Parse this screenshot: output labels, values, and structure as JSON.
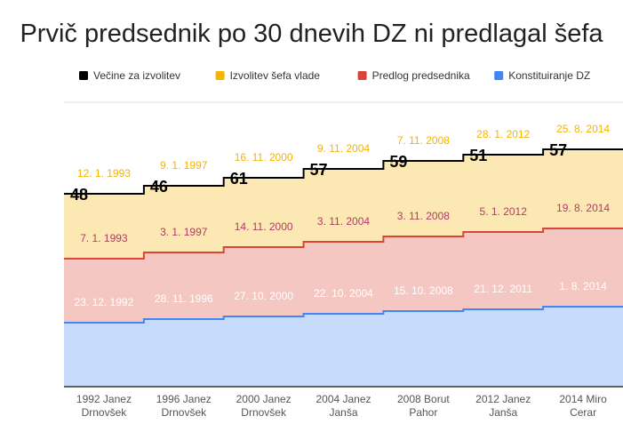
{
  "title": "Prvič predsednik po 30 dnevih DZ ni predlagal šefa",
  "colors": {
    "votes": "#000000",
    "izvolitev": "#f4b400",
    "predlog": "#db4437",
    "konstituiranje": "#4285f4",
    "fill_izvolitev": "#fce8b2",
    "fill_predlog": "#f4c7c3",
    "fill_konstituiranje": "#c6dafc",
    "predlog_date": "#b5396a",
    "axis": "#333333"
  },
  "chart_data": {
    "type": "area",
    "title": "Prvič predsednik po 30 dnevih DZ ni predlagal šefa",
    "categories": [
      [
        "1992 Janez",
        "Drnovšek"
      ],
      [
        "1996 Janez",
        "Drnovšek"
      ],
      [
        "2000 Janez",
        "Drnovšek"
      ],
      [
        "2004 Janez",
        "Janša"
      ],
      [
        "2008 Borut",
        "Pahor"
      ],
      [
        "2012 Janez",
        "Janša"
      ],
      [
        "2014 Miro",
        "Cerar"
      ]
    ],
    "legend_position": "top-right",
    "series": [
      {
        "name": "Večine za izvolitev",
        "color": "#000000",
        "values": [
          48,
          46,
          61,
          57,
          59,
          51,
          57
        ]
      },
      {
        "name": "Izvolitev šefa vlade",
        "color": "#f4b400",
        "date_labels": [
          "12. 1. 1993",
          "9. 1. 1997",
          "16. 11. 2000",
          "9. 11. 2004",
          "7. 11. 2008",
          "28. 1. 2012",
          "25. 8. 2014"
        ]
      },
      {
        "name": "Predlog predsednika",
        "color": "#db4437",
        "date_labels": [
          "7. 1. 1993",
          "3. 1. 1997",
          "14. 11. 2000",
          "3. 11. 2004",
          "3. 11. 2008",
          "5. 1. 2012",
          "19. 8. 2014"
        ]
      },
      {
        "name": "Konstituiranje DZ",
        "color": "#4285f4",
        "date_labels": [
          "23. 12. 1992",
          "28. 11. 1996",
          "27. 10. 2000",
          "22. 10. 2004",
          "15. 10. 2008",
          "21. 12. 2011",
          "1. 8. 2014"
        ]
      }
    ]
  }
}
